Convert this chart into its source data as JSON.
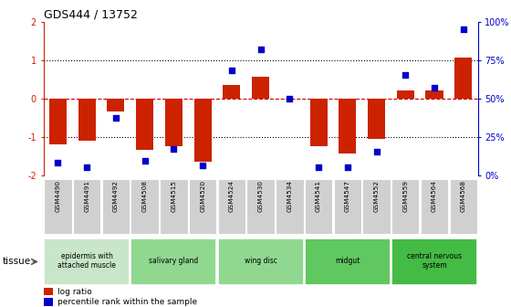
{
  "title": "GDS444 / 13752",
  "samples": [
    "GSM4490",
    "GSM4491",
    "GSM4492",
    "GSM4508",
    "GSM4515",
    "GSM4520",
    "GSM4524",
    "GSM4530",
    "GSM4534",
    "GSM4541",
    "GSM4547",
    "GSM4552",
    "GSM4559",
    "GSM4564",
    "GSM4568"
  ],
  "log_ratios": [
    -1.2,
    -1.1,
    -0.35,
    -1.35,
    -1.25,
    -1.65,
    0.35,
    0.55,
    0.0,
    -1.25,
    -1.45,
    -1.05,
    0.2,
    0.2,
    1.05
  ],
  "percentile_ranks": [
    8,
    5,
    37,
    9,
    17,
    6,
    68,
    82,
    50,
    5,
    5,
    15,
    65,
    57,
    95
  ],
  "bar_color": "#cc2200",
  "dot_color": "#0000cc",
  "ylim": [
    -2,
    2
  ],
  "y2lim": [
    0,
    100
  ],
  "yticks": [
    -2,
    -1,
    0,
    1,
    2
  ],
  "y2ticks": [
    0,
    25,
    50,
    75,
    100
  ],
  "y2ticklabels": [
    "0%",
    "25%",
    "50%",
    "75%",
    "100%"
  ],
  "hlines": [
    -1,
    0,
    1
  ],
  "hline_styles": [
    "dotted",
    "dashed",
    "dotted"
  ],
  "hline_colors": [
    "black",
    "#cc0000",
    "black"
  ],
  "tissue_groups": [
    {
      "label": "epidermis with\nattached muscle",
      "indices": [
        0,
        1,
        2
      ],
      "color": "#c8e6c8"
    },
    {
      "label": "salivary gland",
      "indices": [
        3,
        4,
        5
      ],
      "color": "#90d890"
    },
    {
      "label": "wing disc",
      "indices": [
        6,
        7,
        8
      ],
      "color": "#90d890"
    },
    {
      "label": "midgut",
      "indices": [
        9,
        10,
        11
      ],
      "color": "#60c860"
    },
    {
      "label": "central nervous\nsystem",
      "indices": [
        12,
        13,
        14
      ],
      "color": "#44bb44"
    }
  ],
  "legend_items": [
    {
      "label": "log ratio",
      "color": "#cc2200"
    },
    {
      "label": "percentile rank within the sample",
      "color": "#0000cc"
    }
  ],
  "bar_width": 0.6,
  "dot_size": 18,
  "background_color": "#ffffff",
  "tick_label_bg": "#d0d0d0"
}
